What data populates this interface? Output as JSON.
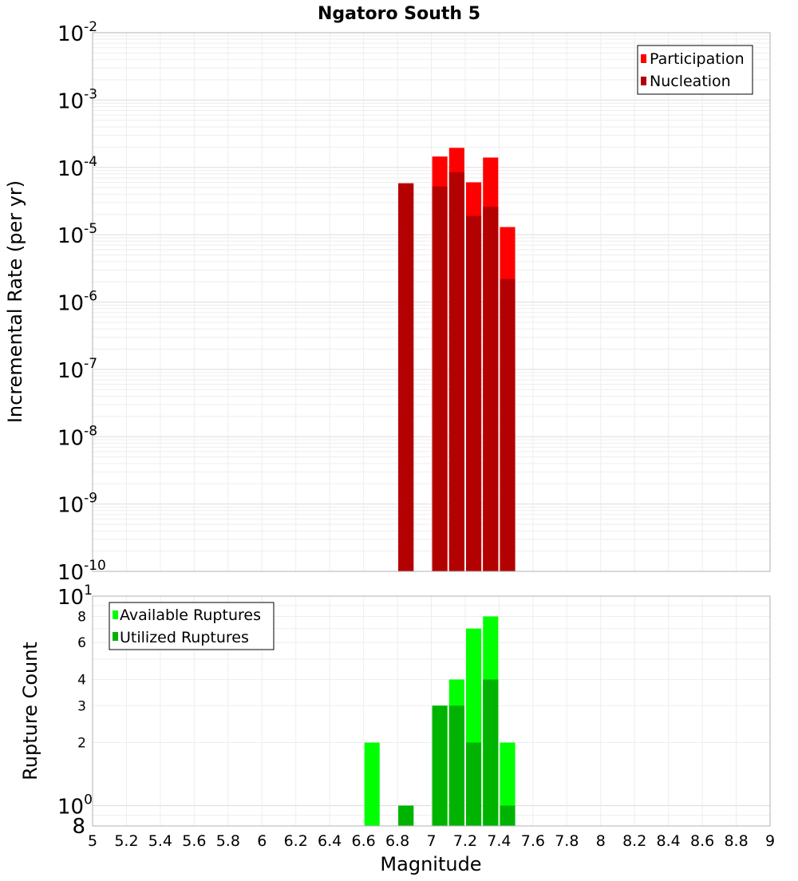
{
  "chart_data": [
    {
      "type": "bar",
      "title": "Ngatoro South 5",
      "xlabel": "",
      "ylabel": "Incremental Rate (per yr)",
      "yscale": "log",
      "ylim": [
        1e-10,
        0.01
      ],
      "xlim": [
        5,
        9
      ],
      "grid": true,
      "legend_position": "top-right",
      "y_ticks": [
        {
          "base": "10",
          "exp": "-10",
          "value": 1e-10
        },
        {
          "base": "10",
          "exp": "-9",
          "value": 1e-09
        },
        {
          "base": "10",
          "exp": "-8",
          "value": 1e-08
        },
        {
          "base": "10",
          "exp": "-7",
          "value": 1e-07
        },
        {
          "base": "10",
          "exp": "-6",
          "value": 1e-06
        },
        {
          "base": "10",
          "exp": "-5",
          "value": 1e-05
        },
        {
          "base": "10",
          "exp": "-4",
          "value": 0.0001
        },
        {
          "base": "10",
          "exp": "-3",
          "value": 0.001
        },
        {
          "base": "10",
          "exp": "-2",
          "value": 0.01
        }
      ],
      "series": [
        {
          "name": "Participation",
          "color": "#ff0000",
          "points": [
            {
              "x": 6.85,
              "y": 5.8e-05
            },
            {
              "x": 7.05,
              "y": 0.000145
            },
            {
              "x": 7.15,
              "y": 0.000195
            },
            {
              "x": 7.25,
              "y": 6e-05
            },
            {
              "x": 7.35,
              "y": 0.00014
            },
            {
              "x": 7.45,
              "y": 1.3e-05
            }
          ]
        },
        {
          "name": "Nucleation",
          "color": "#b30000",
          "points": [
            {
              "x": 6.85,
              "y": 5.8e-05
            },
            {
              "x": 7.05,
              "y": 5.2e-05
            },
            {
              "x": 7.15,
              "y": 8.5e-05
            },
            {
              "x": 7.25,
              "y": 1.9e-05
            },
            {
              "x": 7.35,
              "y": 2.6e-05
            },
            {
              "x": 7.45,
              "y": 2.2e-06
            }
          ]
        }
      ]
    },
    {
      "type": "bar",
      "title": "",
      "xlabel": "Magnitude",
      "ylabel": "Rupture Count",
      "yscale": "log",
      "ylim": [
        0.8,
        10
      ],
      "xlim": [
        5,
        9
      ],
      "grid": true,
      "legend_position": "top-left",
      "x_ticks": [
        "5",
        "5.2",
        "5.4",
        "5.6",
        "5.8",
        "6",
        "6.2",
        "6.4",
        "6.6",
        "6.8",
        "7",
        "7.2",
        "7.4",
        "7.6",
        "7.8",
        "8",
        "8.2",
        "8.4",
        "8.6",
        "8.8",
        "9"
      ],
      "y_ticks_major": [
        {
          "base": "10",
          "exp": "0",
          "value": 1
        },
        {
          "base": "10",
          "exp": "1",
          "value": 10
        }
      ],
      "y_ticks_minor": [
        "2",
        "3",
        "4",
        "6",
        "8"
      ],
      "y_tick_bottom": "8",
      "series": [
        {
          "name": "Available Ruptures",
          "color": "#00ff00",
          "points": [
            {
              "x": 6.65,
              "y": 2
            },
            {
              "x": 6.85,
              "y": 1
            },
            {
              "x": 7.05,
              "y": 3
            },
            {
              "x": 7.15,
              "y": 4
            },
            {
              "x": 7.25,
              "y": 7
            },
            {
              "x": 7.35,
              "y": 8
            },
            {
              "x": 7.45,
              "y": 2
            }
          ]
        },
        {
          "name": "Utilized Ruptures",
          "color": "#00b300",
          "points": [
            {
              "x": 6.85,
              "y": 1
            },
            {
              "x": 7.05,
              "y": 3
            },
            {
              "x": 7.15,
              "y": 3
            },
            {
              "x": 7.25,
              "y": 2
            },
            {
              "x": 7.35,
              "y": 4
            },
            {
              "x": 7.45,
              "y": 1
            }
          ]
        }
      ]
    }
  ]
}
